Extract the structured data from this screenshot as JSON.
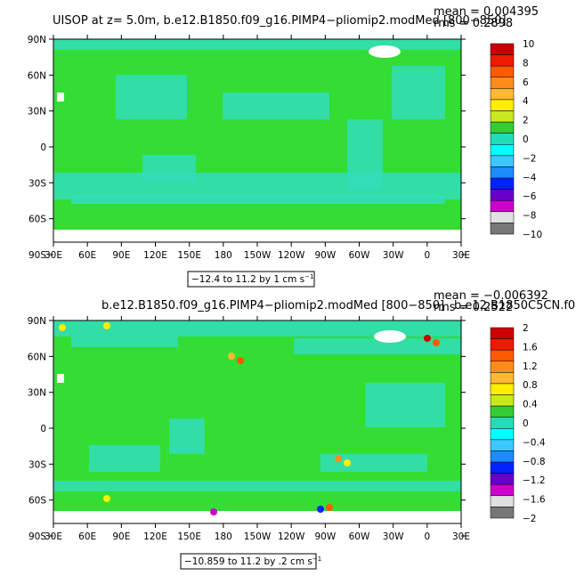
{
  "chart_data": [
    {
      "type": "heatmap",
      "title": "UISOP at z=    5.0m, b.e12.B1850.f09_g16.PIMP4−pliomip2.modMed [800−850]",
      "stats": [
        "mean = 0.004395",
        "rms = 0.2898"
      ],
      "contour_info": "−12.4 to 11.2 by 1 cm s",
      "unit_superscript": "−1",
      "xticks": [
        "30E",
        "60E",
        "90E",
        "120E",
        "150E",
        "180",
        "150W",
        "120W",
        "90W",
        "60W",
        "30W",
        "0",
        "30E"
      ],
      "yticks": [
        "90N",
        "60N",
        "30N",
        "0",
        "30S",
        "60S",
        "90S"
      ],
      "colorbar_labels": [
        "10",
        "8",
        "6",
        "4",
        "2",
        "0",
        "−2",
        "−4",
        "−6",
        "−8",
        "−10"
      ],
      "colorbar_colors": [
        "#cc0000",
        "#ee1a00",
        "#ff5a00",
        "#ff8c1a",
        "#ffb833",
        "#ffee00",
        "#c8e820",
        "#33cc33",
        "#22ddb8",
        "#00ffff",
        "#3cc8ff",
        "#1a8cff",
        "#0022ff",
        "#6600cc",
        "#cc00cc",
        "#e0e0e0",
        "#777777"
      ],
      "field": {
        "base": "#33dd33",
        "secondary": "#33ddbb",
        "land": "#ffffff"
      }
    },
    {
      "type": "heatmap",
      "title": "b.e12.B1850.f09_g16.PIMP4−pliomip2.modMed  [800−850]",
      "stats": [
        "mean = −0.006392",
        "rms = 0.2522"
      ],
      "overlap_text": "b.e12.B1850C5CN.f09",
      "contour_info": "−10.859 to 11.2 by .2 cm s",
      "unit_superscript": "−1",
      "xticks": [
        "30E",
        "60E",
        "90E",
        "120E",
        "150E",
        "180",
        "150W",
        "120W",
        "90W",
        "60W",
        "30W",
        "0",
        "30E"
      ],
      "yticks": [
        "90N",
        "60N",
        "30N",
        "0",
        "30S",
        "60S",
        "90S"
      ],
      "colorbar_labels": [
        "2",
        "1.6",
        "1.2",
        "0.8",
        "0.4",
        "0",
        "−0.4",
        "−0.8",
        "−1.2",
        "−1.6",
        "−2"
      ],
      "colorbar_colors": [
        "#cc0000",
        "#ee1a00",
        "#ff5a00",
        "#ff8c1a",
        "#ffb833",
        "#ffee00",
        "#c8e820",
        "#33cc33",
        "#22ddb8",
        "#00ffff",
        "#3cc8ff",
        "#1a8cff",
        "#0022ff",
        "#6600cc",
        "#cc00cc",
        "#e0e0e0",
        "#777777"
      ],
      "field": {
        "base": "#33dd33",
        "secondary": "#33ddbb",
        "land": "#ffffff"
      }
    }
  ]
}
